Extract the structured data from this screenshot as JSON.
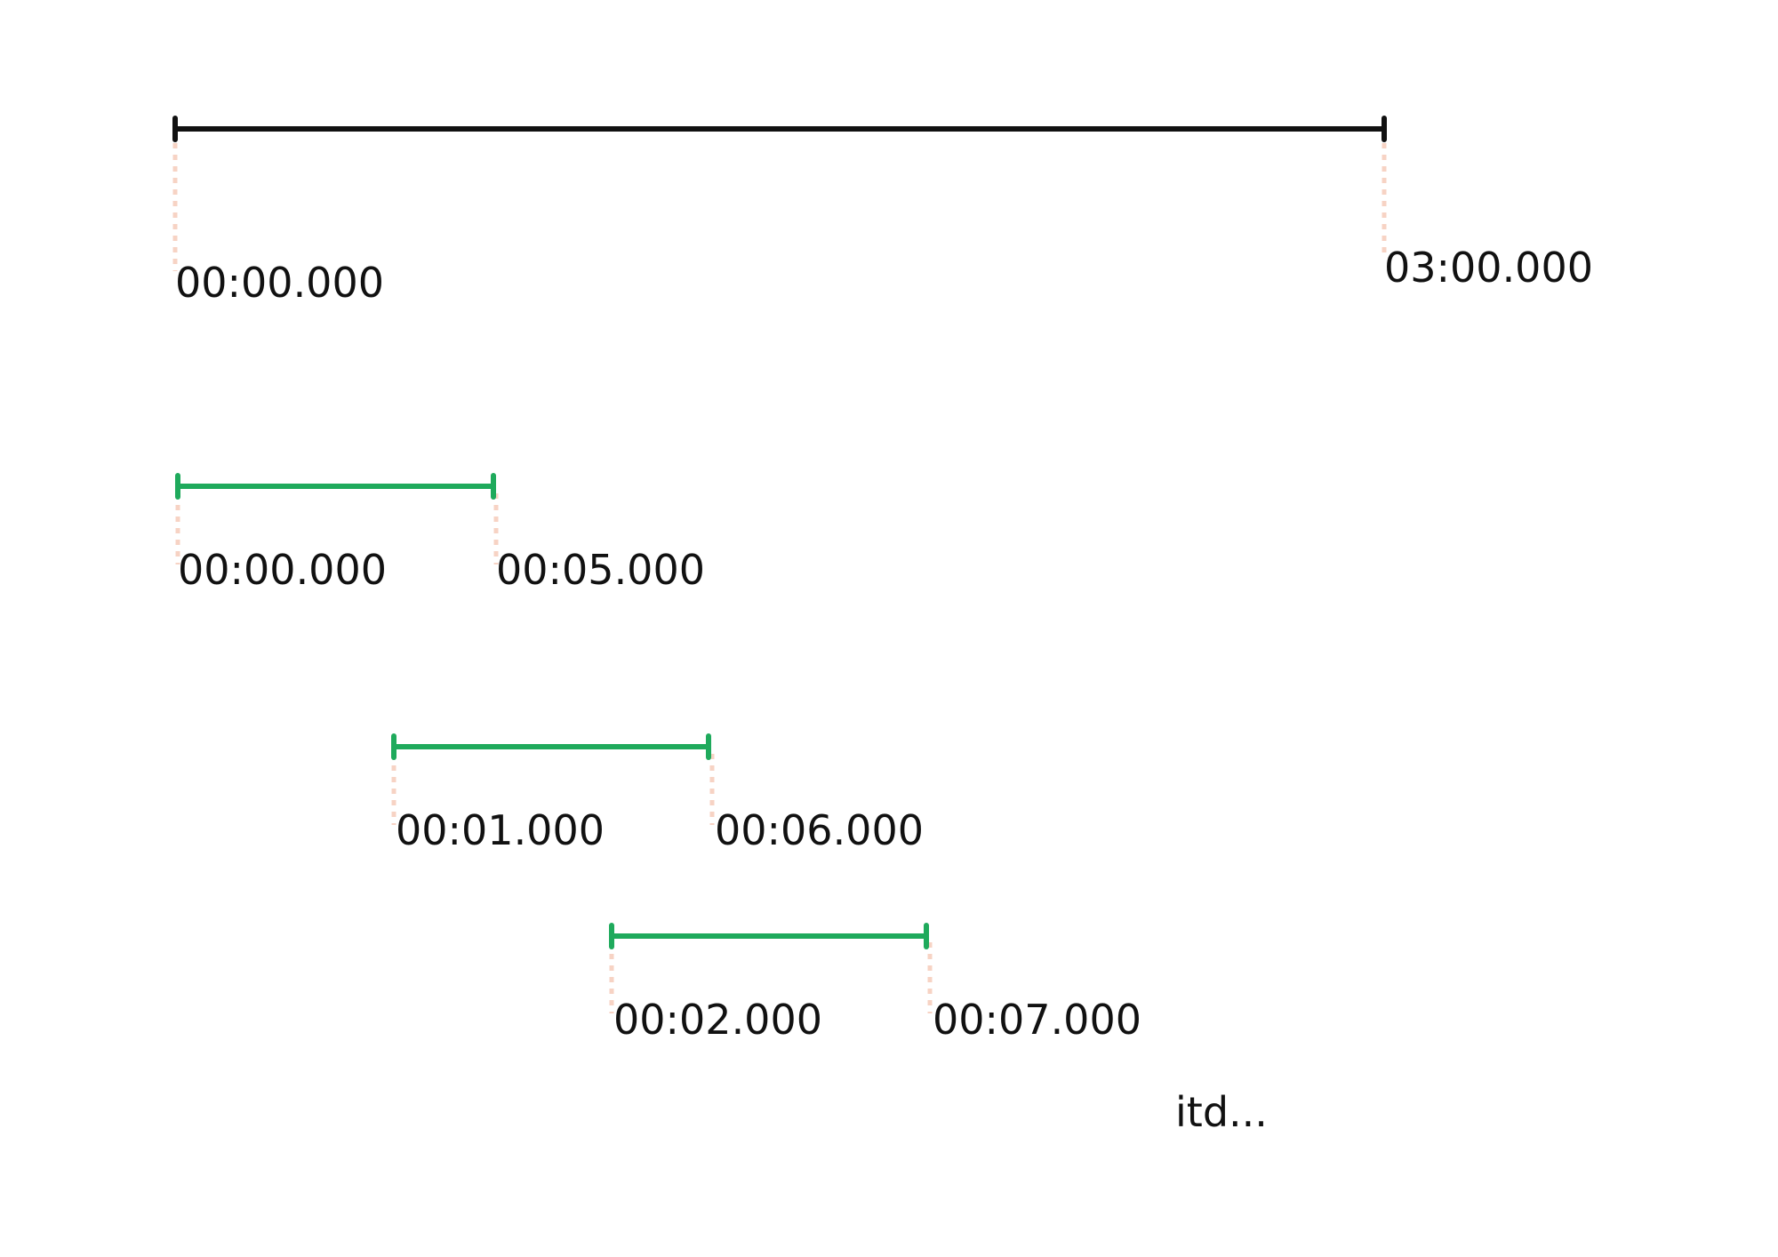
{
  "colors": {
    "full_track": "#111111",
    "segment": "#1faa5c",
    "guide": "#f7d3c4"
  },
  "timeline": {
    "start_label": "00:00.000",
    "end_label": "03:00.000"
  },
  "segments": [
    {
      "start_label": "00:00.000",
      "end_label": "00:05.000"
    },
    {
      "start_label": "00:01.000",
      "end_label": "00:06.000"
    },
    {
      "start_label": "00:02.000",
      "end_label": "00:07.000"
    }
  ],
  "continuation_text": "itd..."
}
